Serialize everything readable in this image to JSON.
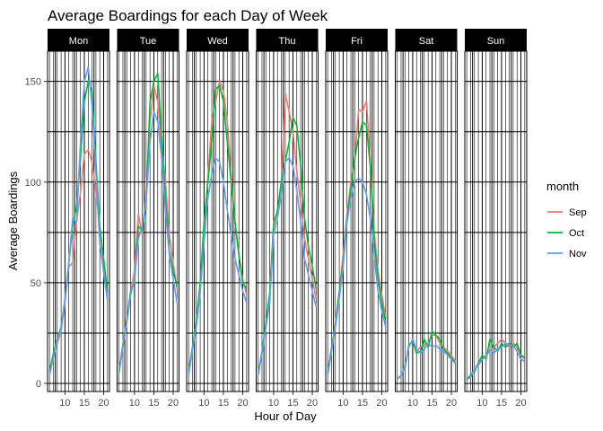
{
  "chart_data": {
    "type": "line",
    "title": "Average Boardings for each Day of Week",
    "xlabel": "Hour of Day",
    "ylabel": "Average Boardings",
    "x_ticks": [
      10,
      15,
      20
    ],
    "y_ticks": [
      0,
      50,
      100,
      150
    ],
    "xlim": [
      5.5,
      21.5
    ],
    "ylim": [
      -4,
      165
    ],
    "grid": true,
    "legend": {
      "title": "month",
      "position": "right",
      "entries": [
        {
          "name": "Sep",
          "color": "#F8766D"
        },
        {
          "name": "Oct",
          "color": "#00BA38"
        },
        {
          "name": "Nov",
          "color": "#619CFF"
        }
      ]
    },
    "x": [
      6,
      7,
      8,
      9,
      10,
      11,
      12,
      13,
      14,
      15,
      16,
      17,
      18,
      19,
      20,
      21
    ],
    "panels": [
      {
        "label": "Mon",
        "series": [
          {
            "name": "Sep",
            "values": [
              5,
              14,
              20,
              26,
              40,
              58,
              60,
              80,
              95,
              114,
              116,
              110,
              95,
              78,
              60,
              44
            ]
          },
          {
            "name": "Oct",
            "values": [
              6,
              15,
              22,
              28,
              42,
              60,
              78,
              88,
              112,
              140,
              150,
              145,
              110,
              78,
              62,
              45
            ]
          },
          {
            "name": "Nov",
            "values": [
              4,
              13,
              21,
              27,
              41,
              60,
              82,
              80,
              120,
              150,
              157,
              138,
              105,
              70,
              55,
              41
            ]
          }
        ]
      },
      {
        "label": "Tue",
        "series": [
          {
            "name": "Sep",
            "values": [
              6,
              20,
              32,
              45,
              56,
              84,
              74,
              96,
              130,
              148,
              140,
              118,
              100,
              74,
              60,
              47
            ]
          },
          {
            "name": "Oct",
            "values": [
              6,
              19,
              31,
              46,
              50,
              78,
              76,
              88,
              140,
              150,
              154,
              122,
              92,
              66,
              56,
              48
            ]
          },
          {
            "name": "Nov",
            "values": [
              5,
              18,
              30,
              44,
              52,
              72,
              78,
              90,
              120,
              135,
              130,
              112,
              86,
              64,
              52,
              40
            ]
          }
        ]
      },
      {
        "label": "Wed",
        "series": [
          {
            "name": "Sep",
            "values": [
              6,
              18,
              30,
              48,
              72,
              102,
              130,
              140,
              150,
              145,
              130,
              104,
              80,
              64,
              52,
              44
            ]
          },
          {
            "name": "Oct",
            "values": [
              6,
              18,
              31,
              50,
              80,
              100,
              120,
              146,
              148,
              140,
              120,
              100,
              80,
              64,
              50,
              47
            ]
          },
          {
            "name": "Nov",
            "values": [
              4,
              17,
              28,
              45,
              70,
              92,
              104,
              112,
              110,
              100,
              86,
              74,
              62,
              54,
              46,
              40
            ]
          }
        ]
      },
      {
        "label": "Thu",
        "series": [
          {
            "name": "Sep",
            "values": [
              5,
              15,
              30,
              44,
              80,
              85,
              100,
              144,
              135,
              125,
              105,
              90,
              72,
              62,
              52,
              42
            ]
          },
          {
            "name": "Oct",
            "values": [
              5,
              16,
              30,
              45,
              78,
              86,
              100,
              110,
              120,
              132,
              128,
              108,
              82,
              68,
              58,
              47
            ]
          },
          {
            "name": "Nov",
            "values": [
              4,
              15,
              28,
              40,
              74,
              82,
              94,
              110,
              112,
              108,
              96,
              80,
              62,
              54,
              46,
              38
            ]
          }
        ]
      },
      {
        "label": "Fri",
        "series": [
          {
            "name": "Sep",
            "values": [
              6,
              18,
              30,
              46,
              64,
              84,
              100,
              110,
              136,
              135,
              140,
              112,
              76,
              56,
              44,
              33
            ]
          },
          {
            "name": "Oct",
            "values": [
              5,
              17,
              29,
              45,
              60,
              82,
              96,
              112,
              122,
              130,
              128,
              108,
              72,
              52,
              40,
              30
            ]
          },
          {
            "name": "Nov",
            "values": [
              4,
              16,
              28,
              42,
              58,
              80,
              92,
              100,
              102,
              100,
              94,
              82,
              64,
              46,
              36,
              28
            ]
          }
        ]
      },
      {
        "label": "Sat",
        "series": [
          {
            "name": "Sep",
            "values": [
              2,
              4,
              8,
              18,
              22,
              16,
              18,
              19,
              20,
              24,
              24,
              20,
              18,
              16,
              14,
              11
            ]
          },
          {
            "name": "Oct",
            "values": [
              2,
              4,
              8,
              19,
              21,
              15,
              16,
              22,
              18,
              26,
              24,
              22,
              17,
              15,
              13,
              10
            ]
          },
          {
            "name": "Nov",
            "values": [
              2,
              4,
              9,
              18,
              22,
              17,
              15,
              17,
              20,
              18,
              19,
              17,
              16,
              14,
              12,
              10
            ]
          }
        ]
      },
      {
        "label": "Sun",
        "series": [
          {
            "name": "Sep",
            "values": [
              2,
              4,
              7,
              10,
              12,
              14,
              16,
              18,
              20,
              22,
              20,
              18,
              20,
              18,
              14,
              12
            ]
          },
          {
            "name": "Oct",
            "values": [
              2,
              4,
              6,
              10,
              14,
              12,
              22,
              18,
              16,
              20,
              18,
              20,
              18,
              20,
              14,
              13
            ]
          },
          {
            "name": "Nov",
            "values": [
              2,
              3,
              7,
              9,
              12,
              13,
              17,
              15,
              17,
              18,
              20,
              19,
              19,
              16,
              12,
              11
            ]
          }
        ]
      }
    ]
  }
}
